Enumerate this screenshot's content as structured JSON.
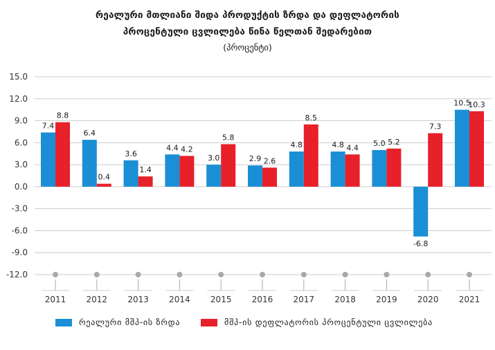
{
  "header": {
    "title_line1": "რეალური მთლიანი შიდა პროდუქტის ზრდა და დეფლატორის",
    "title_line2": "პროცენტული ცვლილება წინა წელთან შედარებით",
    "subtitle": "(პროცენტი)"
  },
  "colors": {
    "real_growth": "#1b8fd6",
    "deflator": "#e8202a",
    "axis_text": "#333333",
    "grid": "#cccccc",
    "marker": "#a9a9a9"
  },
  "chart_data": {
    "type": "bar",
    "title": "რეალური მთლიანი შიდა პროდუქტის ზრდა და დეფლატორის პროცენტული ცვლილება წინა წელთან შედარებით",
    "subtitle": "(პროცენტი)",
    "categories": [
      "2011",
      "2012",
      "2013",
      "2014",
      "2015",
      "2016",
      "2017",
      "2018",
      "2019",
      "2020",
      "2021"
    ],
    "series": [
      {
        "name": "რეალური მშპ-ის ზრდა",
        "color": "#1b8fd6",
        "values": [
          7.4,
          6.4,
          3.6,
          4.4,
          3.0,
          2.9,
          4.8,
          4.8,
          5.0,
          -6.8,
          10.5
        ],
        "labels": [
          "7.4",
          "6.4",
          "3.6",
          "4.4",
          "3.0",
          "2.9",
          "4.8",
          "4.8",
          "5.0",
          "-6.8",
          "10.5"
        ]
      },
      {
        "name": "მშპ-ის დეფლატორის პროცენტული ცვლილება",
        "color": "#e8202a",
        "values": [
          8.8,
          0.4,
          1.4,
          4.2,
          5.8,
          2.6,
          8.5,
          4.4,
          5.2,
          7.3,
          10.3
        ],
        "labels": [
          "8.8",
          "0.4",
          "1.4",
          "4.2",
          "5.8",
          "2.6",
          "8.5",
          "4.4",
          "5.2",
          "7.3",
          "10.3"
        ]
      }
    ],
    "ylim": [
      -12.0,
      15.0
    ],
    "yticks": [
      "15.0",
      "12.0",
      "9.0",
      "6.0",
      "3.0",
      "0.0",
      "-3.0",
      "-6.0",
      "-9.0",
      "-12.0"
    ],
    "grid": true,
    "legend_position": "bottom",
    "xlabel": "",
    "ylabel": ""
  }
}
